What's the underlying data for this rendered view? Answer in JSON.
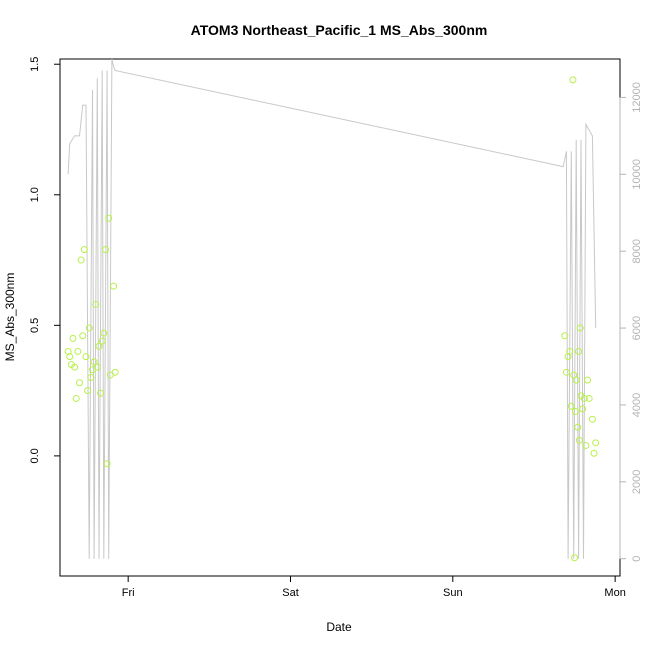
{
  "chart_data": {
    "type": "scatter",
    "title": "ATOM3 Northeast_Pacific_1 MS_Abs_300nm",
    "xlabel": "Date",
    "ylabel": "MS_Abs_300nm",
    "x_ticks": [
      "Fri",
      "Sat",
      "Sun",
      "Mon"
    ],
    "y_ticks": [
      "0.0",
      "0.5",
      "1.0",
      "1.5"
    ],
    "y2_ticks": [
      "0",
      "2000",
      "4000",
      "6000",
      "8000",
      "10000",
      "12000"
    ],
    "xlim_days": [
      -0.42,
      3.03
    ],
    "ylim": [
      -0.46,
      1.52
    ],
    "y2lim": [
      -450,
      13000
    ],
    "point_color": "#b8f04a",
    "line_color": "#c8c8c8",
    "series": [
      {
        "kind": "points",
        "axis": "left",
        "points": [
          [
            -0.37,
            0.4
          ],
          [
            -0.36,
            0.38
          ],
          [
            -0.35,
            0.35
          ],
          [
            -0.34,
            0.45
          ],
          [
            -0.33,
            0.34
          ],
          [
            -0.32,
            0.22
          ],
          [
            -0.31,
            0.4
          ],
          [
            -0.3,
            0.28
          ],
          [
            -0.29,
            0.75
          ],
          [
            -0.28,
            0.46
          ],
          [
            -0.27,
            0.79
          ],
          [
            -0.26,
            0.38
          ],
          [
            -0.25,
            0.25
          ],
          [
            -0.24,
            0.49
          ],
          [
            -0.23,
            0.3
          ],
          [
            -0.22,
            0.33
          ],
          [
            -0.21,
            0.36
          ],
          [
            -0.2,
            0.58
          ],
          [
            -0.19,
            0.34
          ],
          [
            -0.18,
            0.42
          ],
          [
            -0.17,
            0.24
          ],
          [
            -0.16,
            0.44
          ],
          [
            -0.15,
            0.47
          ],
          [
            -0.14,
            0.79
          ],
          [
            -0.13,
            -0.03
          ],
          [
            -0.12,
            0.91
          ],
          [
            -0.11,
            0.31
          ],
          [
            -0.09,
            0.65
          ],
          [
            -0.08,
            0.32
          ],
          [
            2.69,
            0.46
          ],
          [
            2.7,
            0.32
          ],
          [
            2.71,
            0.38
          ],
          [
            2.72,
            0.4
          ],
          [
            2.73,
            0.19
          ],
          [
            2.74,
            1.44
          ],
          [
            2.745,
            0.31
          ],
          [
            2.75,
            -0.39
          ],
          [
            2.755,
            0.17
          ],
          [
            2.76,
            0.29
          ],
          [
            2.77,
            0.11
          ],
          [
            2.775,
            0.4
          ],
          [
            2.78,
            0.06
          ],
          [
            2.785,
            0.49
          ],
          [
            2.79,
            0.23
          ],
          [
            2.8,
            0.18
          ],
          [
            2.81,
            0.22
          ],
          [
            2.82,
            0.04
          ],
          [
            2.83,
            0.29
          ],
          [
            2.84,
            0.22
          ],
          [
            2.86,
            0.14
          ],
          [
            2.87,
            0.01
          ],
          [
            2.88,
            0.05
          ]
        ]
      },
      {
        "kind": "line",
        "axis": "right",
        "points": [
          [
            -0.37,
            10000
          ],
          [
            -0.36,
            10800
          ],
          [
            -0.33,
            11000
          ],
          [
            -0.3,
            11000
          ],
          [
            -0.28,
            11800
          ],
          [
            -0.26,
            11800
          ],
          [
            -0.24,
            0
          ],
          [
            -0.22,
            12200
          ],
          [
            -0.21,
            0
          ],
          [
            -0.19,
            12500
          ],
          [
            -0.18,
            0
          ],
          [
            -0.16,
            12700
          ],
          [
            -0.15,
            0
          ],
          [
            -0.13,
            12700
          ],
          [
            -0.12,
            0
          ],
          [
            -0.1,
            13000
          ],
          [
            -0.09,
            12800
          ],
          [
            -0.08,
            12700
          ],
          [
            2.68,
            10200
          ],
          [
            2.7,
            10600
          ],
          [
            2.71,
            0
          ],
          [
            2.73,
            10600
          ],
          [
            2.745,
            0
          ],
          [
            2.76,
            10900
          ],
          [
            2.775,
            0
          ],
          [
            2.79,
            10900
          ],
          [
            2.805,
            0
          ],
          [
            2.82,
            11300
          ],
          [
            2.86,
            11000
          ],
          [
            2.88,
            6000
          ]
        ]
      }
    ]
  }
}
